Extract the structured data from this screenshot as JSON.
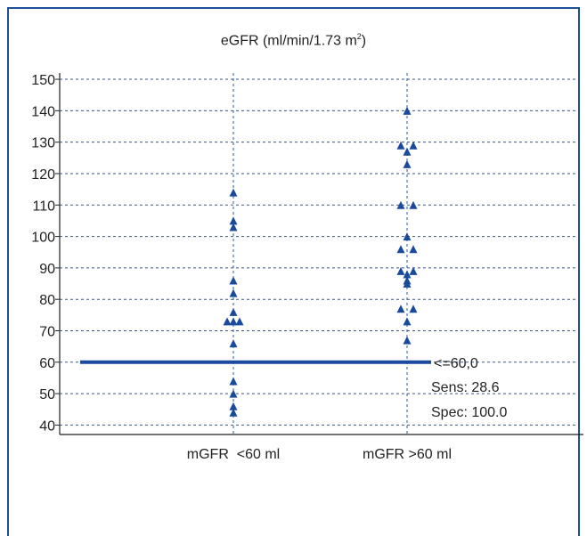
{
  "chart_data": {
    "type": "scatter",
    "title": "eGFR (ml/min/1.73 m",
    "title_superscript": "2",
    "title_suffix": ")",
    "categories": [
      "mGFR  <60 ml",
      "mGFR >60 ml"
    ],
    "ylim": [
      37,
      152
    ],
    "yticks": [
      150,
      140,
      130,
      120,
      110,
      100,
      90,
      80,
      70,
      60,
      50,
      40
    ],
    "grid": true,
    "marker": "triangle",
    "marker_color": "#1a4a9c",
    "series": [
      {
        "category": "mGFR  <60 ml",
        "points": [
          {
            "dx": 0,
            "y": 114
          },
          {
            "dx": 0,
            "y": 105
          },
          {
            "dx": 0,
            "y": 103
          },
          {
            "dx": 0,
            "y": 86
          },
          {
            "dx": 0,
            "y": 82
          },
          {
            "dx": 0,
            "y": 76
          },
          {
            "dx": -1,
            "y": 73
          },
          {
            "dx": 0,
            "y": 73
          },
          {
            "dx": 1,
            "y": 73
          },
          {
            "dx": 0,
            "y": 66
          },
          {
            "dx": 0,
            "y": 54
          },
          {
            "dx": 0,
            "y": 50
          },
          {
            "dx": 0,
            "y": 46
          },
          {
            "dx": 0,
            "y": 44
          }
        ]
      },
      {
        "category": "mGFR >60 ml",
        "points": [
          {
            "dx": 0,
            "y": 140
          },
          {
            "dx": -1,
            "y": 129
          },
          {
            "dx": 1,
            "y": 129
          },
          {
            "dx": 0,
            "y": 127
          },
          {
            "dx": 0,
            "y": 123
          },
          {
            "dx": -1,
            "y": 110
          },
          {
            "dx": 1,
            "y": 110
          },
          {
            "dx": 0,
            "y": 100
          },
          {
            "dx": -1,
            "y": 96
          },
          {
            "dx": 1,
            "y": 96
          },
          {
            "dx": -1,
            "y": 89
          },
          {
            "dx": 0,
            "y": 88
          },
          {
            "dx": 1,
            "y": 89
          },
          {
            "dx": 0,
            "y": 86
          },
          {
            "dx": 0,
            "y": 85
          },
          {
            "dx": -1,
            "y": 77
          },
          {
            "dx": 1,
            "y": 77
          },
          {
            "dx": 0,
            "y": 73
          },
          {
            "dx": 0,
            "y": 67
          }
        ]
      }
    ],
    "cutoff": {
      "value": 60,
      "label": "<=60,0",
      "sens_label": "Sens: 28.6",
      "spec_label": "Spec: 100.0",
      "color": "#1a4a9c"
    },
    "grid_color": "#2a5aa8",
    "axis_color": "#222222"
  }
}
